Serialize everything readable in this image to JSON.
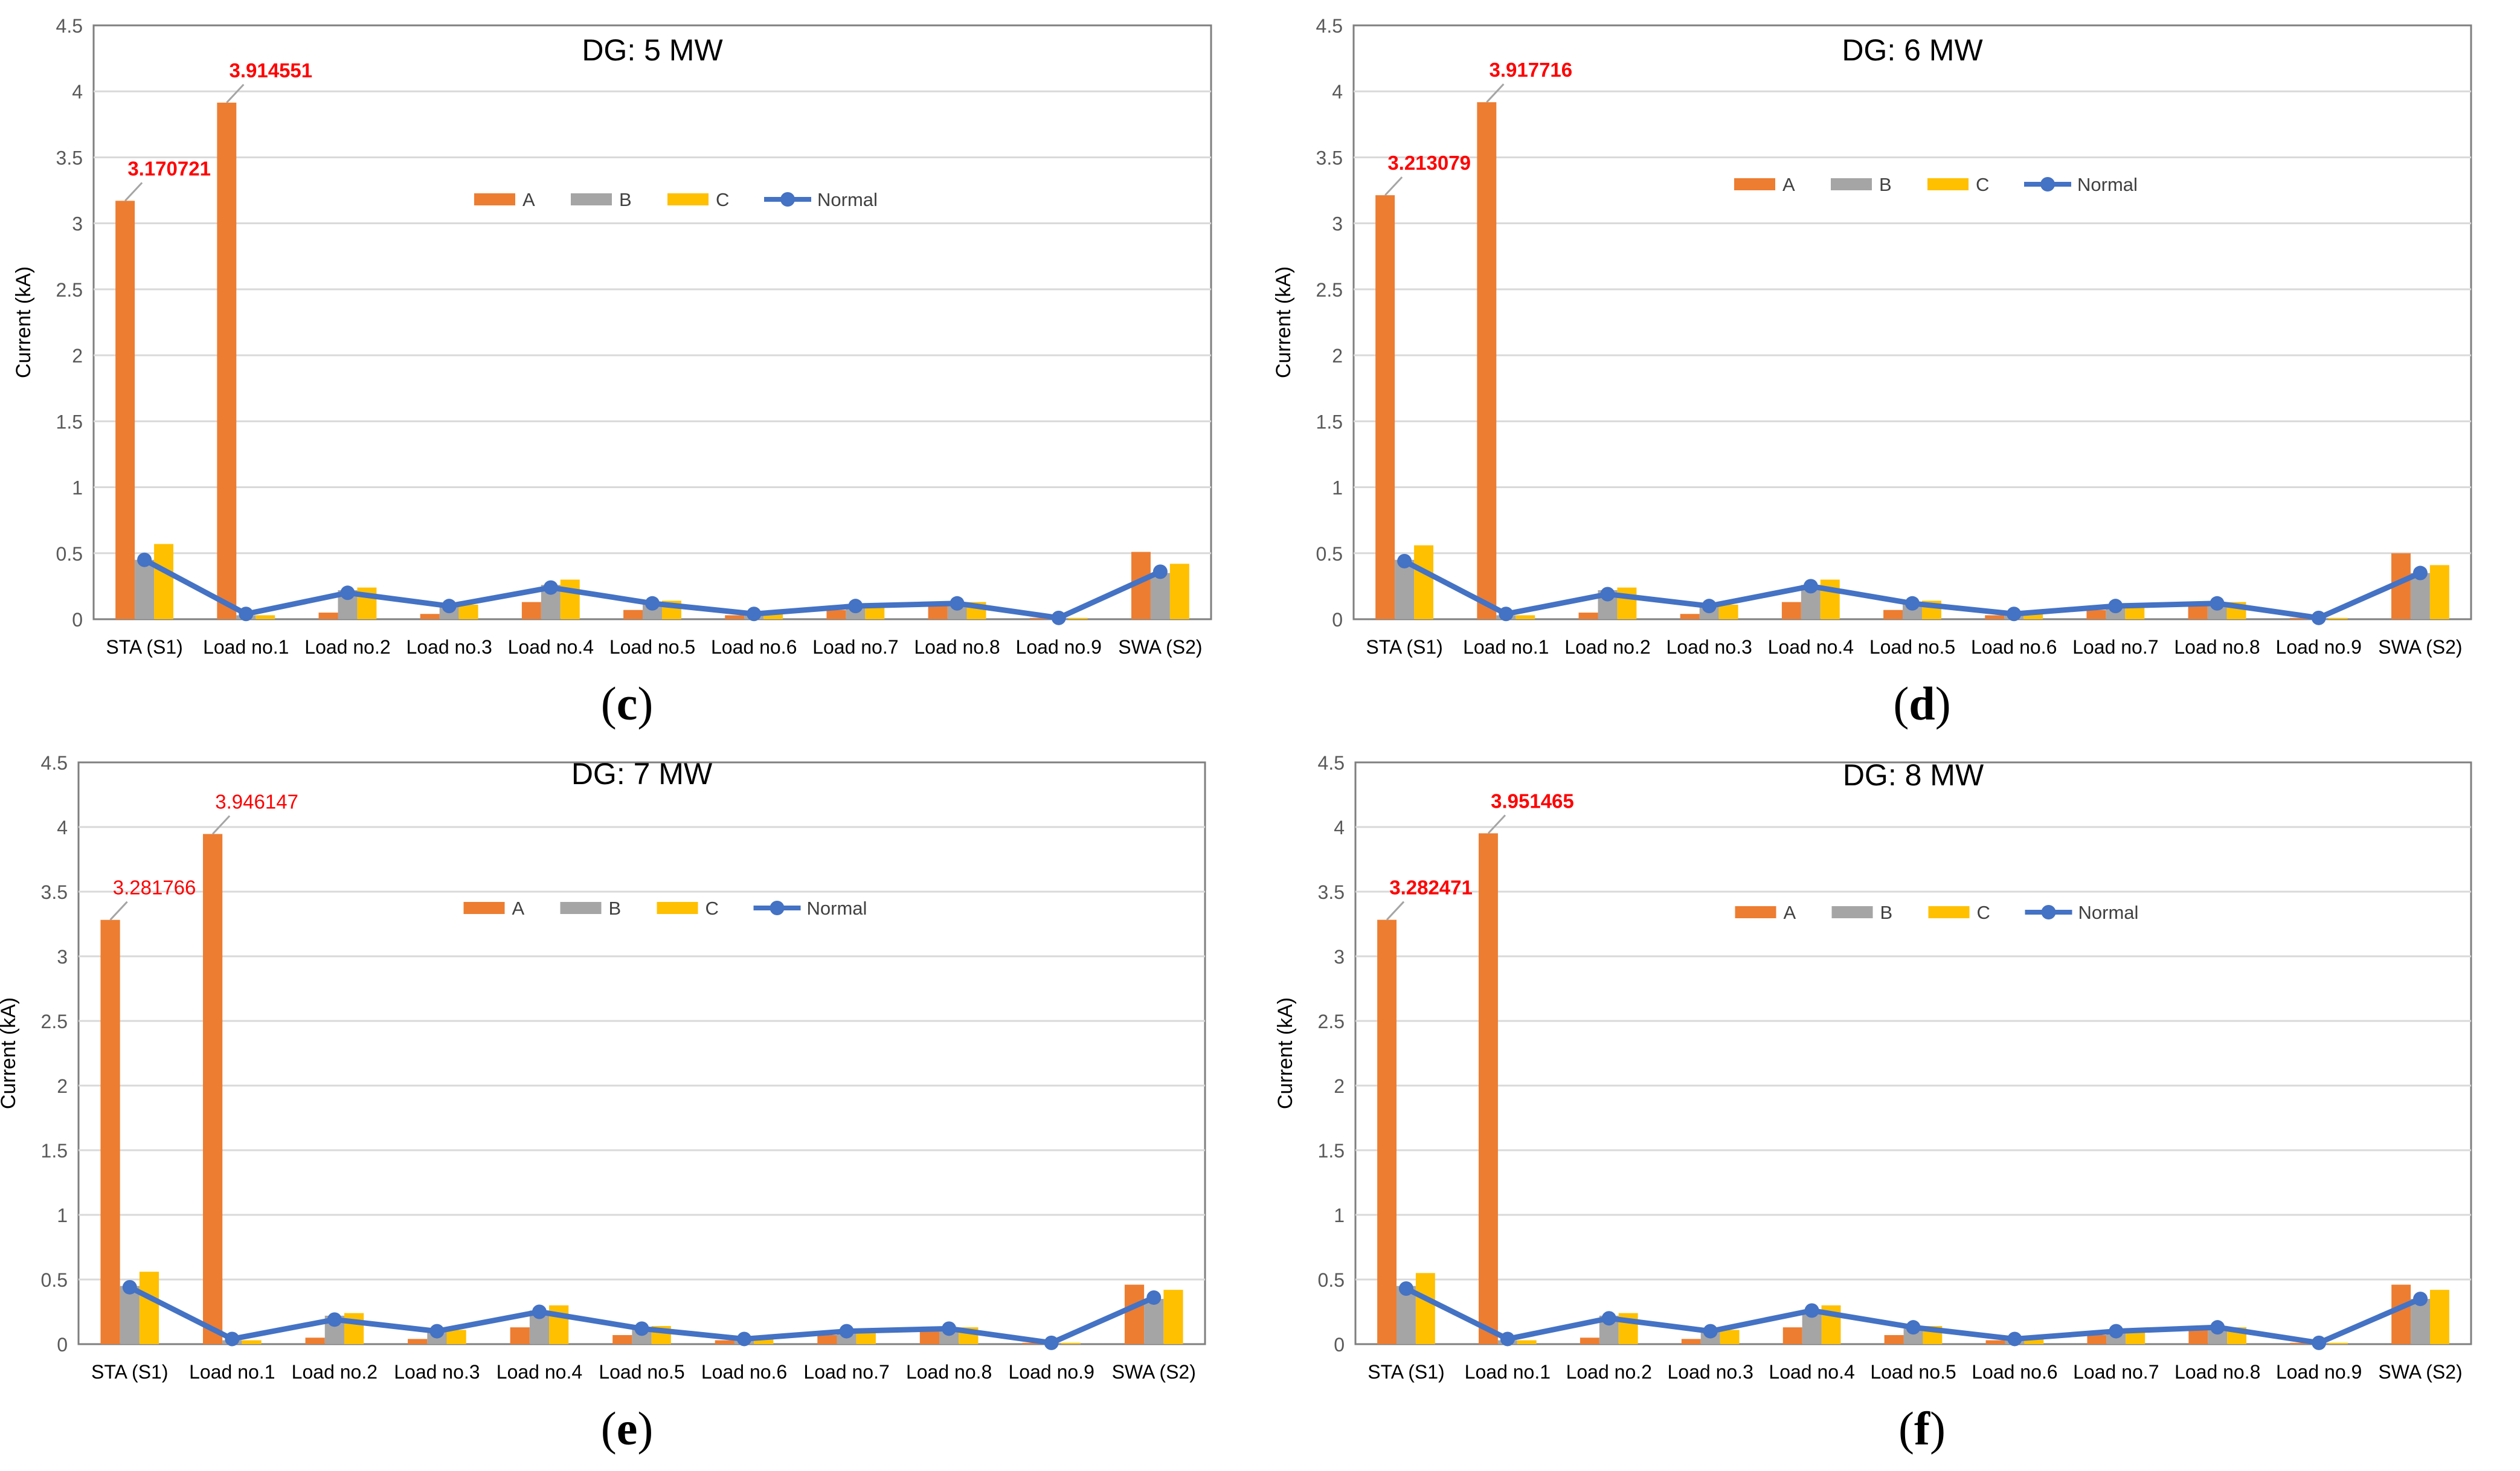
{
  "colors": {
    "A": "#ED7D31",
    "B": "#A5A5A5",
    "C": "#FFC000",
    "Normal": "#4472C4",
    "annotation": "#FF0000"
  },
  "chart_data": [
    {
      "type": "bar",
      "panel": "c",
      "title": "DG: 5 MW",
      "ylabel": "Current (kA)",
      "xlabel": "",
      "ylim": [
        0,
        4.5
      ],
      "yticks": [
        "0",
        "0.5",
        "1",
        "1.5",
        "2",
        "2.5",
        "3",
        "3.5",
        "4",
        "4.5"
      ],
      "categories": [
        "STA (S1)",
        "Load no.1",
        "Load no.2",
        "Load no.3",
        "Load no.4",
        "Load no.5",
        "Load no.6",
        "Load no.7",
        "Load no.8",
        "Load no.9",
        "SWA (S2)"
      ],
      "series": [
        {
          "name": "A",
          "kind": "bar",
          "values": [
            3.170721,
            3.914551,
            0.05,
            0.04,
            0.13,
            0.07,
            0.03,
            0.07,
            0.11,
            0.01,
            0.51
          ]
        },
        {
          "name": "B",
          "kind": "bar",
          "values": [
            0.45,
            0.03,
            0.22,
            0.1,
            0.26,
            0.12,
            0.04,
            0.1,
            0.12,
            0.01,
            0.35
          ]
        },
        {
          "name": "C",
          "kind": "bar",
          "values": [
            0.57,
            0.03,
            0.24,
            0.11,
            0.3,
            0.14,
            0.04,
            0.1,
            0.13,
            0.01,
            0.42
          ]
        },
        {
          "name": "Normal",
          "kind": "line",
          "values": [
            0.45,
            0.04,
            0.2,
            0.1,
            0.24,
            0.12,
            0.04,
            0.1,
            0.12,
            0.01,
            0.36
          ]
        }
      ],
      "annotations": [
        {
          "text": "3.170721",
          "category_index": 0,
          "value": 3.170721,
          "bold": true
        },
        {
          "text": "3.914551",
          "category_index": 1,
          "value": 3.914551,
          "bold": true
        }
      ],
      "legend": "center-top"
    },
    {
      "type": "bar",
      "panel": "d",
      "title": "DG: 6 MW",
      "ylabel": "Current (kA)",
      "xlabel": "",
      "ylim": [
        0,
        4.5
      ],
      "yticks": [
        "0",
        "0.5",
        "1",
        "1.5",
        "2",
        "2.5",
        "3",
        "3.5",
        "4",
        "4.5"
      ],
      "categories": [
        "STA (S1)",
        "Load no.1",
        "Load no.2",
        "Load no.3",
        "Load no.4",
        "Load no.5",
        "Load no.6",
        "Load no.7",
        "Load no.8",
        "Load no.9",
        "SWA (S2)"
      ],
      "series": [
        {
          "name": "A",
          "kind": "bar",
          "values": [
            3.213079,
            3.917716,
            0.05,
            0.04,
            0.13,
            0.07,
            0.03,
            0.07,
            0.11,
            0.01,
            0.5
          ]
        },
        {
          "name": "B",
          "kind": "bar",
          "values": [
            0.45,
            0.03,
            0.22,
            0.1,
            0.26,
            0.12,
            0.04,
            0.1,
            0.12,
            0.01,
            0.35
          ]
        },
        {
          "name": "C",
          "kind": "bar",
          "values": [
            0.56,
            0.03,
            0.24,
            0.11,
            0.3,
            0.14,
            0.04,
            0.1,
            0.13,
            0.01,
            0.41
          ]
        },
        {
          "name": "Normal",
          "kind": "line",
          "values": [
            0.44,
            0.04,
            0.19,
            0.1,
            0.25,
            0.12,
            0.04,
            0.1,
            0.12,
            0.01,
            0.35
          ]
        }
      ],
      "annotations": [
        {
          "text": "3.213079",
          "category_index": 0,
          "value": 3.213079,
          "bold": true
        },
        {
          "text": "3.917716",
          "category_index": 1,
          "value": 3.917716,
          "bold": true
        }
      ],
      "legend": "center-top"
    },
    {
      "type": "bar",
      "panel": "e",
      "title": "DG: 7 MW",
      "ylabel": "Current (kA)",
      "xlabel": "",
      "ylim": [
        0,
        4.5
      ],
      "yticks": [
        "0",
        "0.5",
        "1",
        "1.5",
        "2",
        "2.5",
        "3",
        "3.5",
        "4",
        "4.5"
      ],
      "categories": [
        "STA (S1)",
        "Load no.1",
        "Load no.2",
        "Load no.3",
        "Load no.4",
        "Load no.5",
        "Load no.6",
        "Load no.7",
        "Load no.8",
        "Load no.9",
        "SWA (S2)"
      ],
      "series": [
        {
          "name": "A",
          "kind": "bar",
          "values": [
            3.281766,
            3.946147,
            0.05,
            0.04,
            0.13,
            0.07,
            0.03,
            0.07,
            0.11,
            0.01,
            0.46
          ]
        },
        {
          "name": "B",
          "kind": "bar",
          "values": [
            0.45,
            0.03,
            0.22,
            0.1,
            0.26,
            0.12,
            0.04,
            0.1,
            0.12,
            0.01,
            0.35
          ]
        },
        {
          "name": "C",
          "kind": "bar",
          "values": [
            0.56,
            0.03,
            0.24,
            0.11,
            0.3,
            0.14,
            0.04,
            0.1,
            0.13,
            0.01,
            0.42
          ]
        },
        {
          "name": "Normal",
          "kind": "line",
          "values": [
            0.44,
            0.04,
            0.19,
            0.1,
            0.25,
            0.12,
            0.04,
            0.1,
            0.12,
            0.01,
            0.36
          ]
        }
      ],
      "annotations": [
        {
          "text": "3.281766",
          "category_index": 0,
          "value": 3.281766,
          "bold": false
        },
        {
          "text": "3.946147",
          "category_index": 1,
          "value": 3.946147,
          "bold": false
        }
      ],
      "legend": "center-top"
    },
    {
      "type": "bar",
      "panel": "f",
      "title": "DG: 8 MW",
      "ylabel": "Current (kA)",
      "xlabel": "",
      "ylim": [
        0,
        4.5
      ],
      "yticks": [
        "0",
        "0.5",
        "1",
        "1.5",
        "2",
        "2.5",
        "3",
        "3.5",
        "4",
        "4.5"
      ],
      "categories": [
        "STA (S1)",
        "Load no.1",
        "Load no.2",
        "Load no.3",
        "Load no.4",
        "Load no.5",
        "Load no.6",
        "Load no.7",
        "Load no.8",
        "Load no.9",
        "SWA (S2)"
      ],
      "series": [
        {
          "name": "A",
          "kind": "bar",
          "values": [
            3.282471,
            3.951465,
            0.05,
            0.04,
            0.13,
            0.07,
            0.03,
            0.07,
            0.11,
            0.01,
            0.46
          ]
        },
        {
          "name": "B",
          "kind": "bar",
          "values": [
            0.45,
            0.03,
            0.22,
            0.1,
            0.26,
            0.12,
            0.04,
            0.1,
            0.12,
            0.01,
            0.35
          ]
        },
        {
          "name": "C",
          "kind": "bar",
          "values": [
            0.55,
            0.03,
            0.24,
            0.11,
            0.3,
            0.14,
            0.04,
            0.1,
            0.13,
            0.01,
            0.42
          ]
        },
        {
          "name": "Normal",
          "kind": "line",
          "values": [
            0.43,
            0.04,
            0.2,
            0.1,
            0.26,
            0.13,
            0.04,
            0.1,
            0.13,
            0.01,
            0.35
          ]
        }
      ],
      "annotations": [
        {
          "text": "3.282471",
          "category_index": 0,
          "value": 3.282471,
          "bold": true
        },
        {
          "text": "3.951465",
          "category_index": 1,
          "value": 3.951465,
          "bold": true
        }
      ],
      "legend": "center-top"
    }
  ],
  "subfigure_labels": [
    {
      "letter": "c",
      "open": "(",
      "close": ")"
    },
    {
      "letter": "d",
      "open": "(",
      "close": ")"
    },
    {
      "letter": "e",
      "open": "(",
      "close": ")"
    },
    {
      "letter": "f",
      "open": "(",
      "close": ")"
    }
  ]
}
